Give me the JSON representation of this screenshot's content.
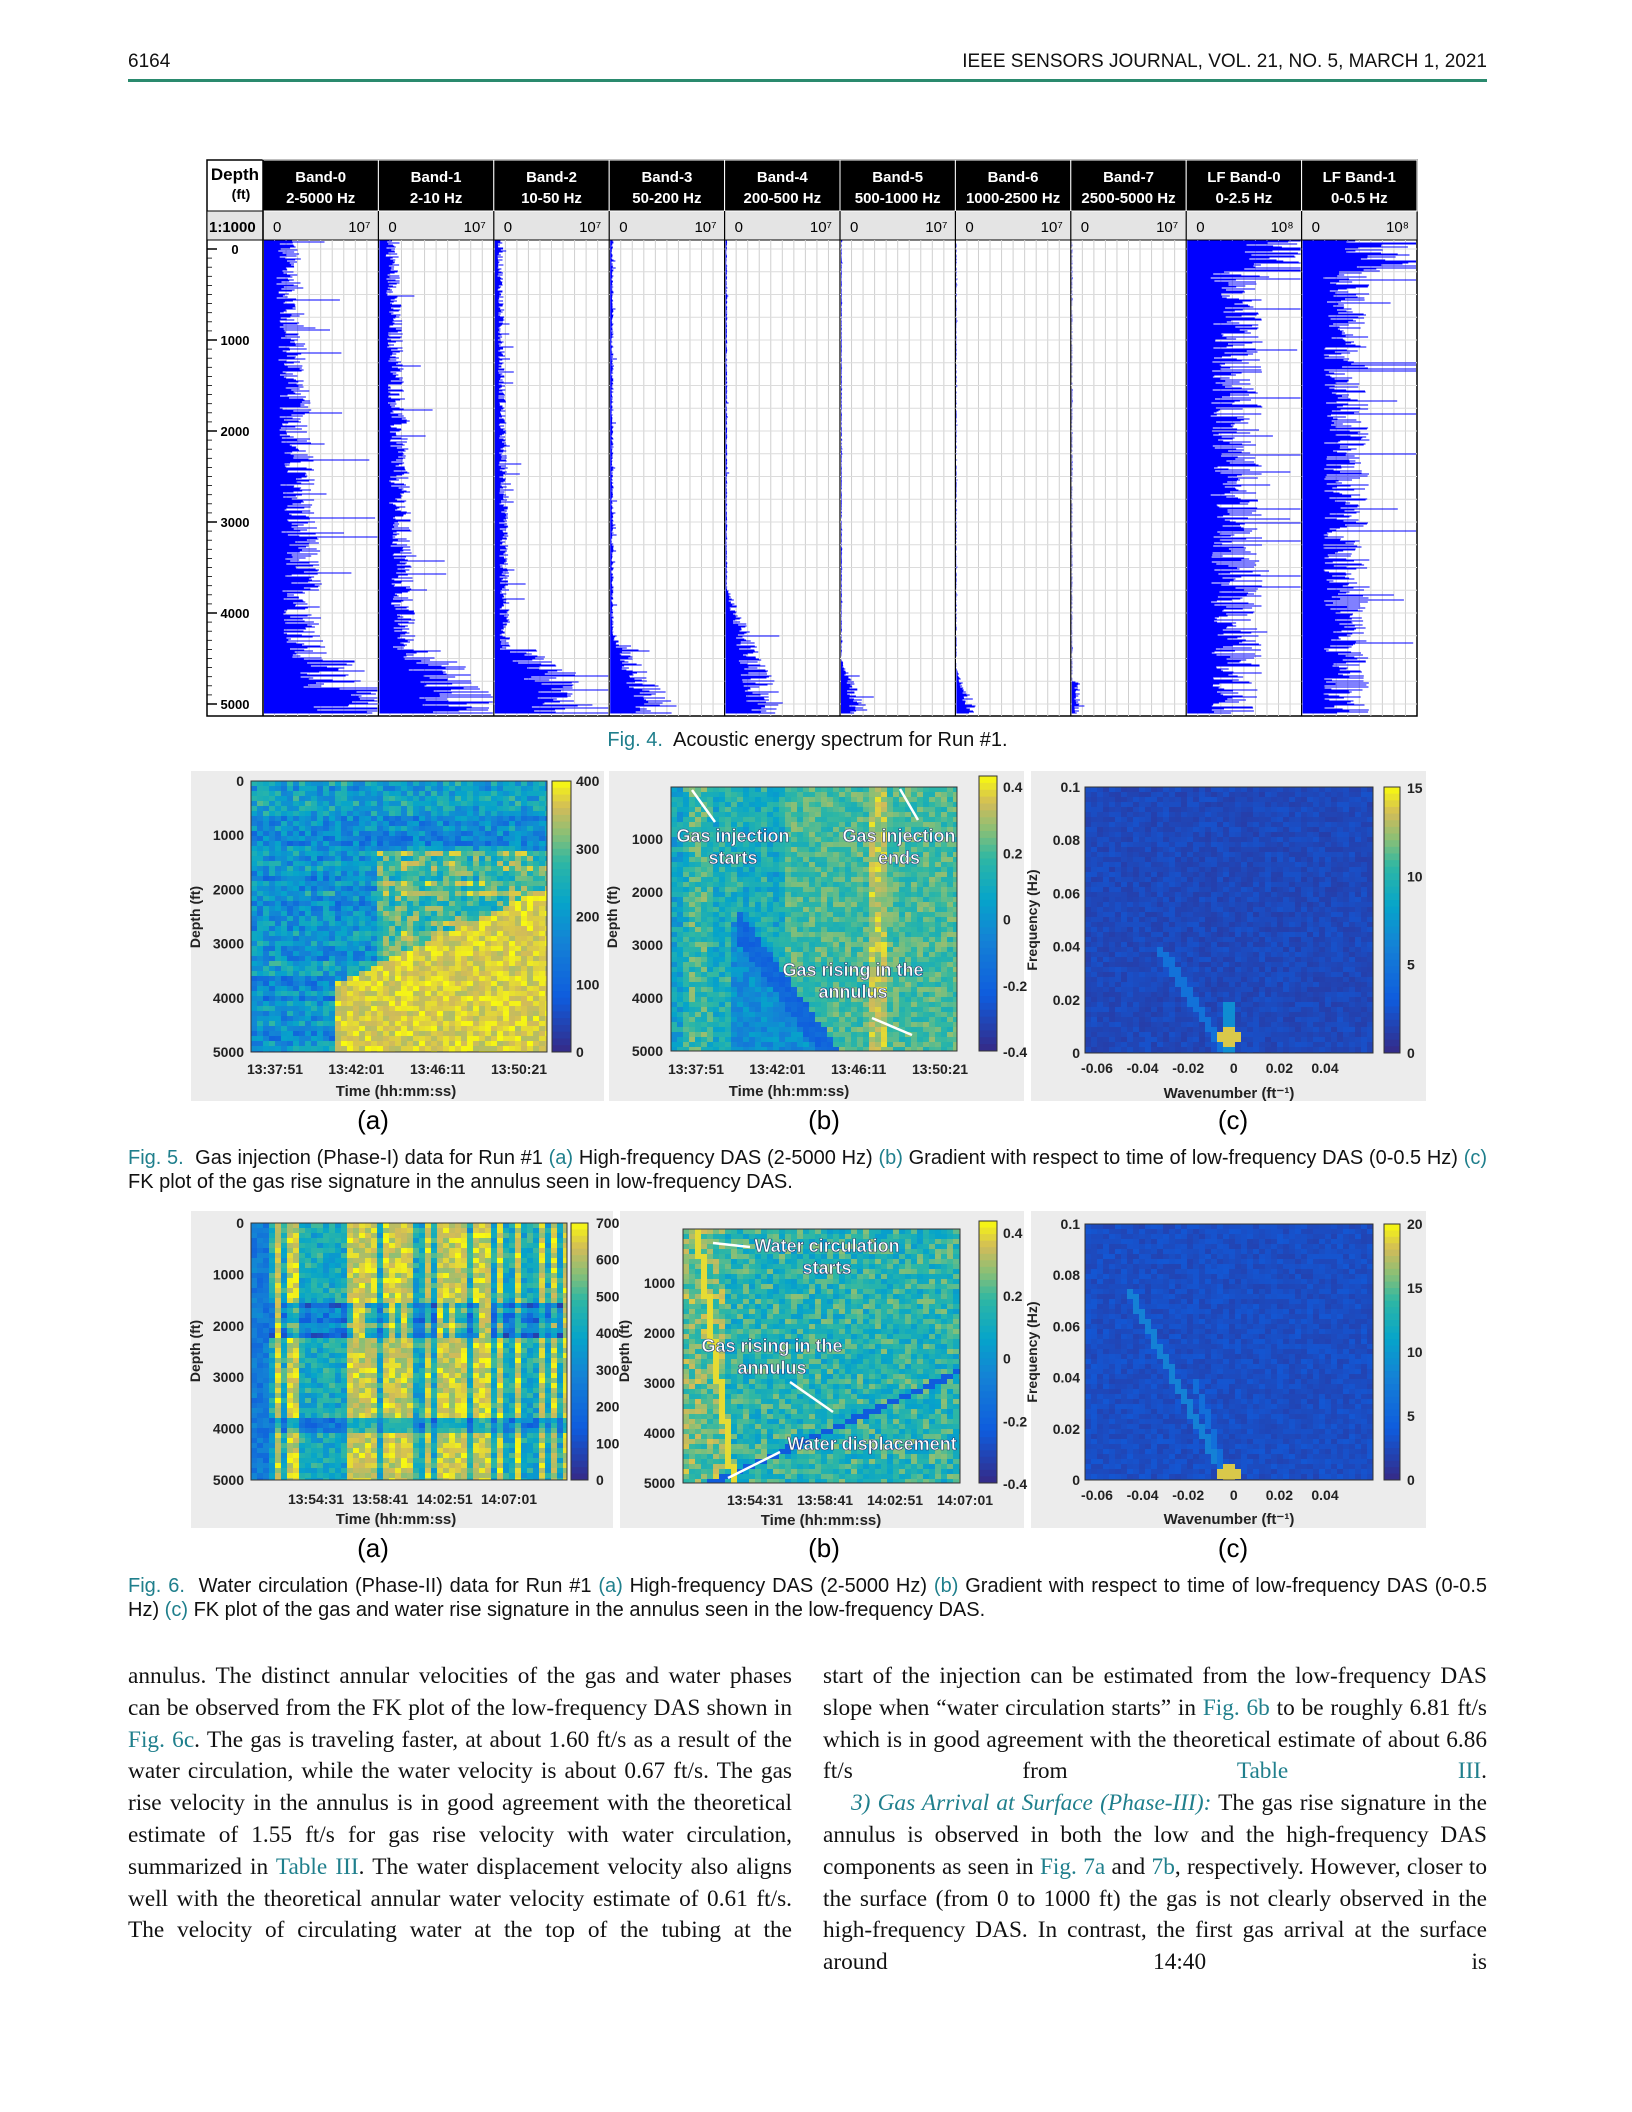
{
  "header": {
    "page_number": "6164",
    "journal": "IEEE SENSORS JOURNAL, VOL. 21, NO. 5, MARCH 1, 2021"
  },
  "fig4": {
    "depth_label": "Depth",
    "depth_unit": "(ft)",
    "scale": "1:1000",
    "depth_ticks": [
      "0",
      "1000",
      "2000",
      "3000",
      "4000",
      "5000"
    ],
    "bands": [
      {
        "name": "Band-0",
        "range": "2-5000 Hz",
        "min": "0",
        "max": "10⁷"
      },
      {
        "name": "Band-1",
        "range": "2-10 Hz",
        "min": "0",
        "max": "10⁷"
      },
      {
        "name": "Band-2",
        "range": "10-50 Hz",
        "min": "0",
        "max": "10⁷"
      },
      {
        "name": "Band-3",
        "range": "50-200 Hz",
        "min": "0",
        "max": "10⁷"
      },
      {
        "name": "Band-4",
        "range": "200-500 Hz",
        "min": "0",
        "max": "10⁷"
      },
      {
        "name": "Band-5",
        "range": "500-1000 Hz",
        "min": "0",
        "max": "10⁷"
      },
      {
        "name": "Band-6",
        "range": "1000-2500 Hz",
        "min": "0",
        "max": "10⁷"
      },
      {
        "name": "Band-7",
        "range": "2500-5000 Hz",
        "min": "0",
        "max": "10⁷"
      },
      {
        "name": "LF Band-0",
        "range": "0-2.5 Hz",
        "min": "0",
        "max": "10⁸"
      },
      {
        "name": "LF Band-1",
        "range": "0-0.5 Hz",
        "min": "0",
        "max": "10⁸"
      }
    ],
    "caption": {
      "label": "Fig. 4.",
      "text": "Acoustic energy spectrum for Run #1."
    }
  },
  "fig5": {
    "panels": [
      {
        "sublabel": "(a)",
        "ylabel": "Depth (ft)",
        "xlabel": "Time (hh:mm:ss)",
        "yticks": [
          "0",
          "1000",
          "2000",
          "3000",
          "4000",
          "5000"
        ],
        "xticks": [
          "13:37:51",
          "13:42:01",
          "13:46:11",
          "13:50:21"
        ],
        "cbticks": [
          "400",
          "300",
          "200",
          "100",
          "0"
        ],
        "annotations": []
      },
      {
        "sublabel": "(b)",
        "ylabel": "Depth (ft)",
        "xlabel": "Time (hh:mm:ss)",
        "yticks": [
          "1000",
          "2000",
          "3000",
          "4000",
          "5000"
        ],
        "xticks": [
          "13:37:51",
          "13:42:01",
          "13:46:11",
          "13:50:21"
        ],
        "cbticks": [
          "0.4",
          "0.2",
          "0",
          "-0.2",
          "-0.4"
        ],
        "annotations": [
          {
            "lines": [
              "Gas injection",
              "starts"
            ]
          },
          {
            "lines": [
              "Gas injection",
              "ends"
            ]
          },
          {
            "lines": [
              "Gas rising in the",
              "annulus"
            ]
          }
        ]
      },
      {
        "sublabel": "(c)",
        "ylabel": "Frequency (Hz)",
        "xlabel": "Wavenumber (ft⁻¹)",
        "yticks": [
          "0.1",
          "0.08",
          "0.06",
          "0.04",
          "0.02",
          "0"
        ],
        "xticks": [
          "-0.06",
          "-0.04",
          "-0.02",
          "0",
          "0.02",
          "0.04"
        ],
        "cbticks": [
          "15",
          "10",
          "5",
          "0"
        ],
        "annotations": []
      }
    ],
    "caption": {
      "label": "Fig. 5.",
      "intro": "Gas injection (Phase-I) data for Run #1",
      "items": [
        {
          "ref": "(a)",
          "text": "High-frequency DAS (2-5000 Hz)"
        },
        {
          "ref": "(b)",
          "text": "Gradient with respect to time of low-frequency DAS (0-0.5 Hz)"
        },
        {
          "ref": "(c)",
          "text": "FK plot of the gas rise signature in the annulus seen in low-frequency DAS."
        }
      ]
    }
  },
  "fig6": {
    "panels": [
      {
        "sublabel": "(a)",
        "ylabel": "Depth (ft)",
        "xlabel": "Time (hh:mm:ss)",
        "yticks": [
          "0",
          "1000",
          "2000",
          "3000",
          "4000",
          "5000"
        ],
        "xticks": [
          "13:54:31",
          "13:58:41",
          "14:02:51",
          "14:07:01"
        ],
        "cbticks": [
          "700",
          "600",
          "500",
          "400",
          "300",
          "200",
          "100",
          "0"
        ],
        "annotations": []
      },
      {
        "sublabel": "(b)",
        "ylabel": "Depth (ft)",
        "xlabel": "Time (hh:mm:ss)",
        "yticks": [
          "1000",
          "2000",
          "3000",
          "4000",
          "5000"
        ],
        "xticks": [
          "13:54:31",
          "13:58:41",
          "14:02:51",
          "14:07:01"
        ],
        "cbticks": [
          "0.4",
          "0.2",
          "0",
          "-0.2",
          "-0.4"
        ],
        "annotations": [
          {
            "lines": [
              "Water circulation",
              "starts"
            ]
          },
          {
            "lines": [
              "Gas rising in the",
              "annulus"
            ]
          },
          {
            "lines": [
              "Water displacement"
            ]
          }
        ]
      },
      {
        "sublabel": "(c)",
        "ylabel": "Frequency (Hz)",
        "xlabel": "Wavenumber (ft⁻¹)",
        "yticks": [
          "0.1",
          "0.08",
          "0.06",
          "0.04",
          "0.02",
          "0"
        ],
        "xticks": [
          "-0.06",
          "-0.04",
          "-0.02",
          "0",
          "0.02",
          "0.04"
        ],
        "cbticks": [
          "20",
          "15",
          "10",
          "5",
          "0"
        ],
        "annotations": []
      }
    ],
    "caption": {
      "label": "Fig. 6.",
      "intro": "Water circulation (Phase-II) data for Run #1",
      "items": [
        {
          "ref": "(a)",
          "text": "High-frequency DAS (2-5000 Hz)"
        },
        {
          "ref": "(b)",
          "text": "Gradient with respect to time of low-frequency DAS (0-0.5 Hz)"
        },
        {
          "ref": "(c)",
          "text": "FK plot of the gas and water rise signature in the annulus seen in the low-frequency DAS."
        }
      ]
    }
  },
  "body": {
    "left": [
      {
        "segments": [
          {
            "text": "annulus. The distinct annular velocities of the gas and water phases can be observed from the FK plot of the low-frequency DAS shown in "
          },
          {
            "ref": "Fig. 6c"
          },
          {
            "text": ". The gas is traveling faster, at about 1.60 ft/s as a result of the water circulation, while the water velocity is about 0.67 ft/s. The gas rise velocity in the annulus is in good agreement with the theoretical estimate of 1.55 ft/s for gas rise velocity with water circulation, summarized in "
          },
          {
            "ref": "Table III"
          },
          {
            "text": ". The water displacement velocity also aligns well with the theoretical annular water velocity estimate of 0.61 ft/s. The velocity of circulating water at the top of the tubing at the"
          }
        ]
      }
    ],
    "right": [
      {
        "segments": [
          {
            "text": "start of the injection can be estimated from the low-frequency DAS slope when “water circulation starts” in "
          },
          {
            "ref": "Fig. 6b"
          },
          {
            "text": " to be roughly 6.81 ft/s which is in good agreement with the theoretical estimate of about 6.86 ft/s from "
          },
          {
            "ref": "Table III"
          },
          {
            "text": "."
          }
        ]
      },
      {
        "segments": [
          {
            "heading": "3) Gas Arrival at Surface (Phase-III):"
          },
          {
            "text": " The gas rise signature in the annulus is observed in both the low and the high-frequency DAS components as seen in "
          },
          {
            "ref": "Fig. 7a"
          },
          {
            "text": " and "
          },
          {
            "ref": "7b"
          },
          {
            "text": ", respectively. However, closer to the surface (from 0 to 1000 ft) the gas is not clearly observed in the high-frequency DAS. In contrast, the first gas arrival at the surface around 14:40 is"
          }
        ]
      }
    ]
  }
}
